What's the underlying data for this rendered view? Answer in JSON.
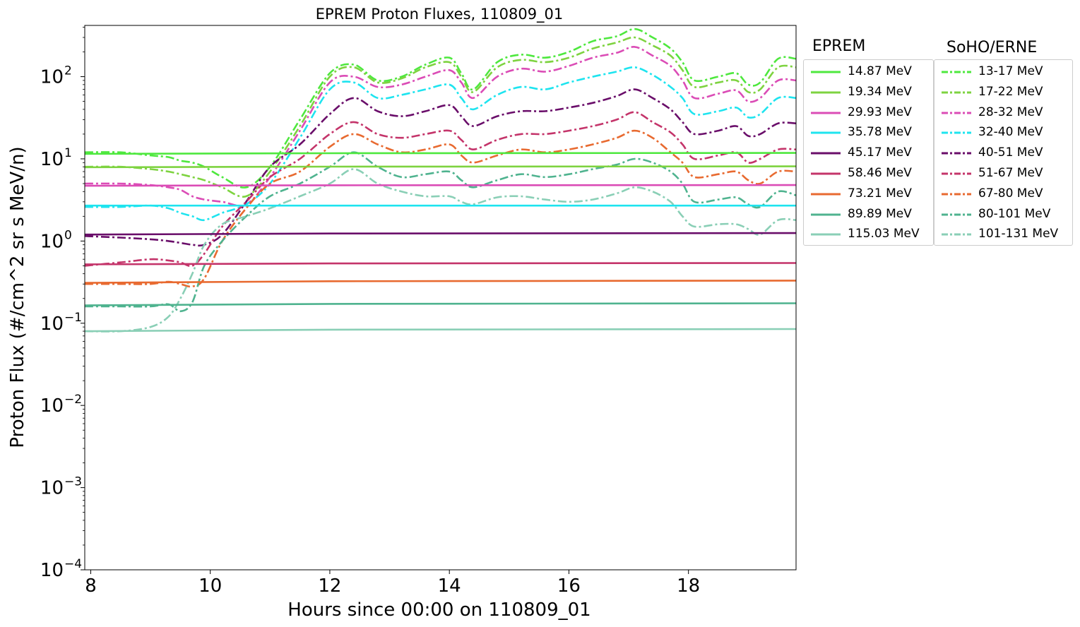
{
  "chart_data": {
    "type": "line",
    "title": "EPREM Proton Fluxes, 110809_01",
    "xlabel": "Hours since 00:00 on 110809_01",
    "ylabel": "Proton Flux (#/cm^2 sr s MeV/n)",
    "xlim": [
      7.9,
      19.8
    ],
    "ylim": [
      0.0001,
      420
    ],
    "yscale": "log",
    "xticks": [
      8,
      10,
      12,
      14,
      16,
      18
    ],
    "yticks": [
      {
        "value": 0.0001,
        "base": "10",
        "exp": "−4"
      },
      {
        "value": 0.001,
        "base": "10",
        "exp": "−3"
      },
      {
        "value": 0.01,
        "base": "10",
        "exp": "−2"
      },
      {
        "value": 0.1,
        "base": "10",
        "exp": "−1"
      },
      {
        "value": 1,
        "base": "10",
        "exp": "0"
      },
      {
        "value": 10,
        "base": "10",
        "exp": "1"
      },
      {
        "value": 100,
        "base": "10",
        "exp": "2"
      }
    ],
    "grid": false,
    "legend_titles": {
      "eprem": "EPREM",
      "erne": "SoHO/ERNE"
    },
    "eprem_series": [
      {
        "name": "14.87 MeV",
        "color": "#4ee83e",
        "start": 11.5,
        "end": 11.8
      },
      {
        "name": "19.34 MeV",
        "color": "#7ed340",
        "start": 7.9,
        "end": 8.1
      },
      {
        "name": "29.93 MeV",
        "color": "#db4cb6",
        "start": 4.7,
        "end": 4.8
      },
      {
        "name": "35.78 MeV",
        "color": "#1ee4ef",
        "start": 2.7,
        "end": 2.7
      },
      {
        "name": "45.17 MeV",
        "color": "#6a0e6a",
        "start": 1.2,
        "end": 1.25
      },
      {
        "name": "58.46 MeV",
        "color": "#c4346a",
        "start": 0.52,
        "end": 0.54
      },
      {
        "name": "73.21 MeV",
        "color": "#e86a30",
        "start": 0.31,
        "end": 0.33
      },
      {
        "name": "89.89 MeV",
        "color": "#4fb38f",
        "start": 0.165,
        "end": 0.175
      },
      {
        "name": "115.03 MeV",
        "color": "#8acfb6",
        "start": 0.08,
        "end": 0.085
      }
    ],
    "erne_x": [
      7.9,
      8.5,
      9.0,
      9.3,
      9.5,
      9.7,
      9.9,
      10.2,
      10.6,
      11.0,
      11.5,
      12.0,
      12.4,
      12.8,
      13.2,
      13.6,
      14.0,
      14.2,
      14.4,
      14.8,
      15.2,
      15.6,
      16.0,
      16.4,
      16.8,
      17.1,
      17.4,
      17.7,
      17.9,
      18.1,
      18.5,
      18.8,
      19.0,
      19.2,
      19.5,
      19.8
    ],
    "erne_series": [
      {
        "name": "13-17 MeV",
        "color": "#4ee83e",
        "values": [
          12,
          12,
          11,
          10.5,
          9.5,
          9,
          8,
          6,
          4.5,
          8,
          30,
          110,
          140,
          90,
          100,
          140,
          170,
          110,
          70,
          150,
          185,
          170,
          200,
          270,
          310,
          380,
          300,
          220,
          150,
          90,
          100,
          110,
          80,
          85,
          165,
          165
        ]
      },
      {
        "name": "17-22 MeV",
        "color": "#7ed340",
        "values": [
          8,
          8,
          7.5,
          7,
          6.5,
          6,
          5.5,
          4.5,
          3.5,
          7,
          25,
          100,
          130,
          85,
          95,
          130,
          150,
          100,
          65,
          130,
          160,
          150,
          170,
          220,
          260,
          300,
          240,
          180,
          120,
          75,
          85,
          90,
          65,
          70,
          130,
          130
        ]
      },
      {
        "name": "28-32 MeV",
        "color": "#db4cb6",
        "values": [
          5,
          5,
          4.8,
          4.5,
          4.2,
          3.5,
          3.2,
          3,
          2.8,
          6,
          22,
          85,
          100,
          75,
          80,
          100,
          120,
          85,
          55,
          100,
          125,
          115,
          135,
          170,
          195,
          230,
          180,
          135,
          90,
          55,
          62,
          68,
          50,
          55,
          90,
          90
        ]
      },
      {
        "name": "32-40 MeV",
        "color": "#1ee4ef",
        "values": [
          2.6,
          2.6,
          2.7,
          2.5,
          2.2,
          2,
          1.8,
          2.2,
          2.8,
          5,
          18,
          70,
          85,
          55,
          60,
          70,
          80,
          55,
          40,
          60,
          75,
          70,
          85,
          100,
          115,
          130,
          105,
          75,
          55,
          35,
          38,
          42,
          32,
          35,
          55,
          55
        ]
      },
      {
        "name": "40-51 MeV",
        "color": "#6a0e6a",
        "values": [
          1.15,
          1.1,
          1.05,
          1.0,
          0.95,
          0.9,
          0.9,
          1.2,
          3,
          8,
          15,
          35,
          55,
          38,
          33,
          38,
          45,
          33,
          25,
          33,
          38,
          38,
          42,
          48,
          58,
          70,
          55,
          40,
          28,
          20,
          22,
          25,
          19,
          20,
          27,
          27
        ]
      },
      {
        "name": "51-67 MeV",
        "color": "#c4346a",
        "values": [
          0.5,
          0.55,
          0.6,
          0.58,
          0.55,
          0.5,
          0.7,
          1.5,
          3,
          6,
          10,
          20,
          28,
          20,
          18,
          20,
          22,
          17,
          13,
          17,
          20,
          20,
          22,
          25,
          30,
          37,
          28,
          21,
          15,
          10,
          11,
          12,
          9,
          10,
          13,
          13
        ]
      },
      {
        "name": "67-80 MeV",
        "color": "#e86a30",
        "values": [
          0.3,
          0.3,
          0.3,
          0.32,
          0.3,
          0.28,
          0.35,
          1.0,
          2.5,
          5,
          7,
          14,
          20,
          15,
          12,
          13,
          15,
          11,
          9,
          11,
          13,
          12,
          13,
          15,
          18,
          22,
          18,
          12,
          9,
          6,
          6.5,
          7,
          5.5,
          5,
          7,
          7
        ]
      },
      {
        "name": "80-101 MeV",
        "color": "#4fb38f",
        "values": [
          0.16,
          0.16,
          0.16,
          0.17,
          0.14,
          0.18,
          0.5,
          1.0,
          2,
          3.5,
          5,
          8,
          12,
          8,
          6,
          6.5,
          7,
          5.5,
          4.5,
          5.5,
          6.5,
          6,
          6.5,
          7.5,
          8.5,
          10,
          9,
          7,
          5,
          3,
          3.2,
          3.4,
          2.8,
          2.6,
          4,
          3.6
        ]
      },
      {
        "name": "101-131 MeV",
        "color": "#8acfb6",
        "values": [
          0.08,
          0.08,
          0.09,
          0.12,
          0.2,
          0.4,
          0.9,
          1.6,
          2,
          2.5,
          3.5,
          5,
          7.5,
          5,
          4,
          3.5,
          3.5,
          3,
          2.8,
          3.4,
          3.5,
          3.2,
          3.0,
          3.2,
          3.8,
          4.5,
          4.0,
          3.0,
          2.0,
          1.5,
          1.6,
          1.6,
          1.4,
          1.2,
          1.8,
          1.8
        ]
      }
    ]
  }
}
